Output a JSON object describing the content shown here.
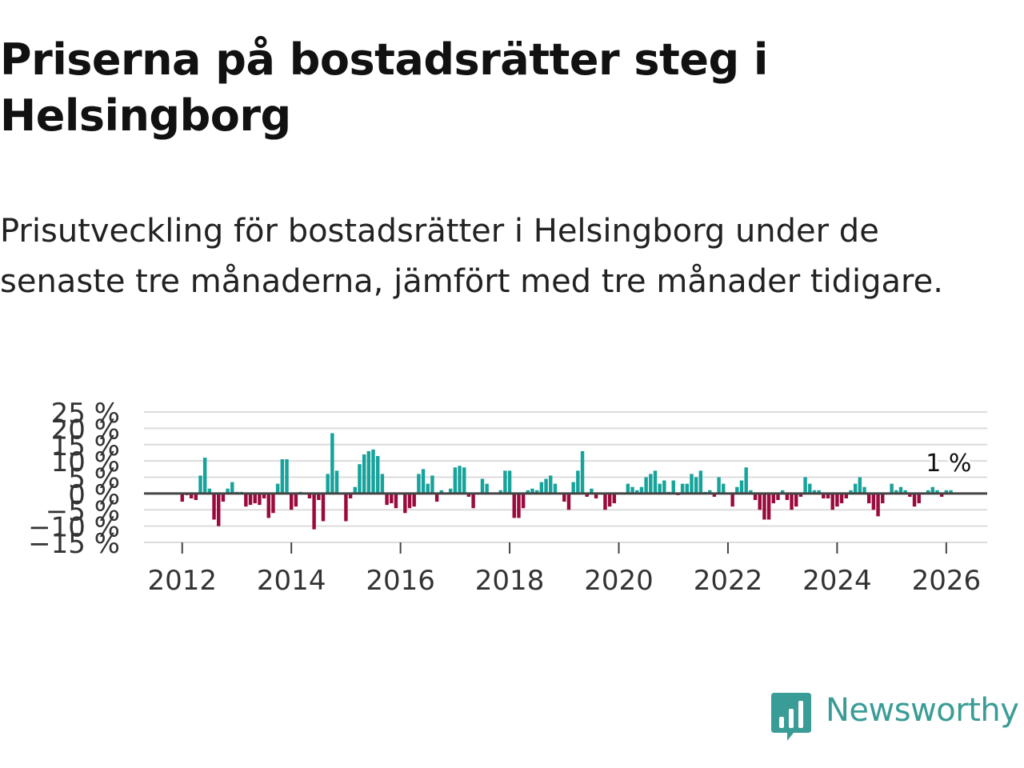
{
  "title": "Priserna på bostadsrätter steg i Helsingborg",
  "subtitle": "Prisutveckling för bostadsrätter i Helsingborg under de senaste tre månaderna, jämfört med tre månader tidigare.",
  "logo": {
    "text": "Newsworthy"
  },
  "colors": {
    "positive": "#16a39b",
    "negative": "#9b0a3d",
    "grid": "#dcdcdc",
    "zero": "#444444",
    "logo": "#3a9c96"
  },
  "chart_data": {
    "type": "bar",
    "title": "",
    "xlabel": "",
    "ylabel": "",
    "unit": "%",
    "ylim": [
      -15,
      25
    ],
    "yticks": [
      -15,
      -10,
      -5,
      0,
      5,
      10,
      15,
      20,
      25
    ],
    "ytick_labels": [
      "−15 %",
      "−10 %",
      "−5 %",
      "0 %",
      "5 %",
      "10 %",
      "15 %",
      "20 %",
      "25 %"
    ],
    "xlim": [
      2011.3,
      2026.75
    ],
    "xticks": [
      2012,
      2014,
      2016,
      2018,
      2020,
      2022,
      2024,
      2026
    ],
    "xtick_labels": [
      "2012",
      "2014",
      "2016",
      "2018",
      "2020",
      "2022",
      "2024",
      "2026"
    ],
    "annotation": {
      "text": "1 %",
      "x": 2026.0,
      "y": 1.0
    },
    "series": [
      {
        "name": "Prisutveckling",
        "start": 2012.0,
        "step_months": 1,
        "values": [
          -2.5,
          -0.5,
          -1.5,
          -2.0,
          5.5,
          11.0,
          1.5,
          -8.0,
          -10.0,
          -2.5,
          1.5,
          3.5,
          0.5,
          0.5,
          -4.0,
          -3.5,
          -3.0,
          -3.5,
          -1.5,
          -7.5,
          -6.0,
          3.0,
          10.5,
          10.5,
          -5.0,
          -4.0,
          0.5,
          0.0,
          -1.5,
          -11.0,
          -2.0,
          -8.5,
          6.0,
          18.5,
          7.0,
          0.0,
          -8.5,
          -1.5,
          2.0,
          9.0,
          12.0,
          13.0,
          13.5,
          11.5,
          6.0,
          -3.5,
          -3.0,
          -4.5,
          0.0,
          -6.0,
          -4.5,
          -4.0,
          6.0,
          7.5,
          3.0,
          5.5,
          -2.5,
          1.0,
          0.0,
          1.5,
          8.0,
          8.5,
          8.0,
          -1.0,
          -4.5,
          0.0,
          4.5,
          3.0,
          0.0,
          0.0,
          1.0,
          7.0,
          7.0,
          -7.5,
          -7.5,
          -4.5,
          1.0,
          1.5,
          1.0,
          3.5,
          4.5,
          5.5,
          3.0,
          0.0,
          -2.5,
          -5.0,
          3.5,
          7.0,
          13.0,
          -1.0,
          1.5,
          -1.5,
          0.0,
          -5.0,
          -4.0,
          -3.0,
          0.0,
          0.0,
          3.0,
          2.0,
          1.0,
          2.0,
          5.0,
          6.0,
          7.0,
          3.0,
          4.0,
          0.5,
          4.0,
          -0.5,
          3.0,
          3.0,
          6.0,
          5.0,
          7.0,
          0.5,
          1.0,
          -1.0,
          5.0,
          3.0,
          0.0,
          -4.0,
          2.0,
          4.0,
          8.0,
          1.0,
          -2.0,
          -5.0,
          -8.0,
          -8.0,
          -3.0,
          -2.0,
          1.0,
          -2.0,
          -5.0,
          -4.0,
          -1.0,
          5.0,
          3.0,
          1.0,
          1.0,
          -1.5,
          -1.5,
          -5.0,
          -4.0,
          -3.0,
          -1.5,
          1.0,
          3.0,
          5.0,
          2.0,
          -3.0,
          -5.0,
          -7.0,
          -3.0,
          0.0,
          3.0,
          1.0,
          2.0,
          1.0,
          -1.0,
          -4.0,
          -3.0,
          0.0,
          1.0,
          2.0,
          1.0,
          -1.0,
          1.0,
          1.0
        ]
      }
    ]
  }
}
